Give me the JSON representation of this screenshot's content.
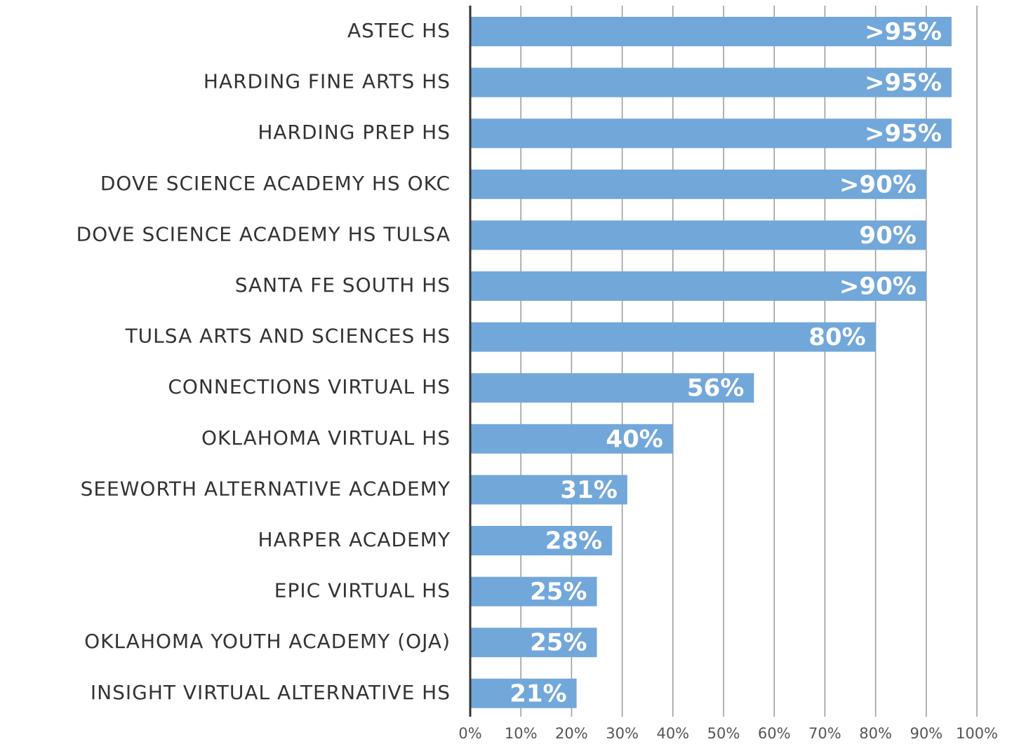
{
  "chart_data": {
    "type": "bar",
    "orientation": "horizontal",
    "categories": [
      "ASTEC HS",
      "HARDING FINE ARTS HS",
      "HARDING PREP HS",
      "DOVE SCIENCE ACADEMY HS OKC",
      "DOVE SCIENCE ACADEMY HS TULSA",
      "SANTA FE SOUTH HS",
      "TULSA ARTS AND SCIENCES HS",
      "CONNECTIONS VIRTUAL HS",
      "OKLAHOMA VIRTUAL HS",
      "SEEWORTH ALTERNATIVE ACADEMY",
      "HARPER ACADEMY",
      "EPIC VIRTUAL HS",
      "OKLAHOMA YOUTH ACADEMY (OJA)",
      "INSIGHT VIRTUAL ALTERNATIVE HS"
    ],
    "values": [
      95,
      95,
      95,
      90,
      90,
      90,
      80,
      56,
      40,
      31,
      28,
      25,
      25,
      21
    ],
    "value_labels": [
      ">95%",
      ">95%",
      ">95%",
      ">90%",
      "90%",
      ">90%",
      "80%",
      "56%",
      "40%",
      "31%",
      "28%",
      "25%",
      "25%",
      "21%"
    ],
    "color": "#72a7da",
    "xlim": [
      0,
      100
    ],
    "xticks": [
      {
        "value": 0,
        "label": "0%"
      },
      {
        "value": 10,
        "label": "10%"
      },
      {
        "value": 20,
        "label": "20%"
      },
      {
        "value": 30,
        "label": "30%"
      },
      {
        "value": 40,
        "label": "40%"
      },
      {
        "value": 50,
        "label": "50%"
      },
      {
        "value": 60,
        "label": "60%"
      },
      {
        "value": 70,
        "label": "70%"
      },
      {
        "value": 80,
        "label": "80%"
      },
      {
        "value": 90,
        "label": "90%"
      },
      {
        "value": 100,
        "label": "100%"
      }
    ],
    "grid": true
  }
}
